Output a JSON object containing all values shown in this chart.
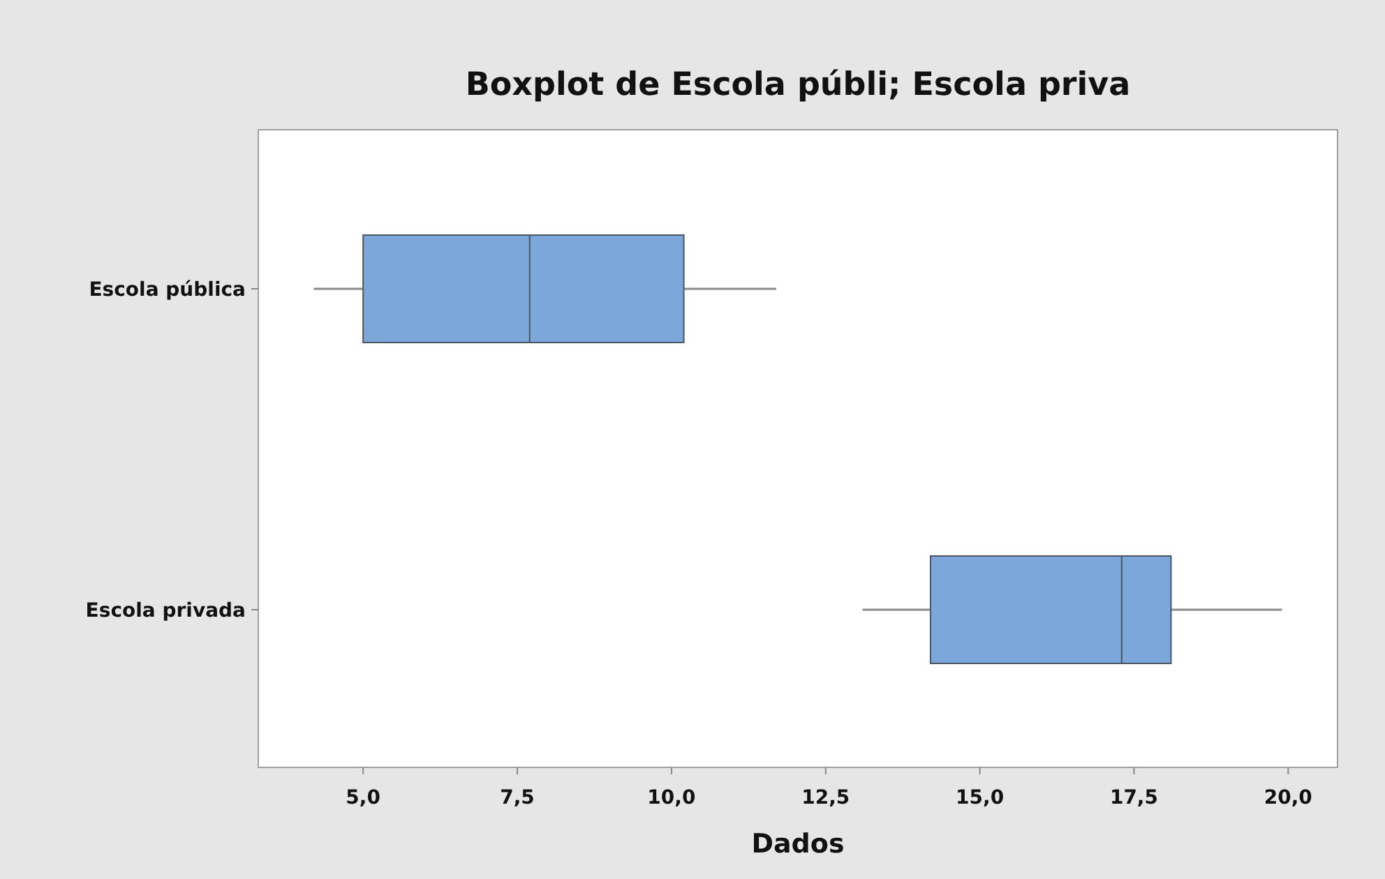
{
  "chart_data": {
    "type": "box",
    "title": "Boxplot de Escola públi; Escola priva",
    "xlabel": "Dados",
    "orientation": "horizontal",
    "categories": [
      "Escola pública",
      "Escola privada"
    ],
    "series": [
      {
        "color": "#7ba7d9",
        "boxes": [
          {
            "low": 4.2,
            "q1": 5.0,
            "median": 7.7,
            "q3": 10.2,
            "high": 11.7
          },
          {
            "low": 13.1,
            "q1": 14.2,
            "median": 17.3,
            "q3": 18.1,
            "high": 19.9
          }
        ]
      }
    ],
    "xlim": [
      3.3,
      20.8
    ],
    "xticks": [
      {
        "value": 5,
        "label": "5,0"
      },
      {
        "value": 7.5,
        "label": "7,5"
      },
      {
        "value": 10,
        "label": "10,0"
      },
      {
        "value": 12.5,
        "label": "12,5"
      },
      {
        "value": 15,
        "label": "15,0"
      },
      {
        "value": 17.5,
        "label": "17,5"
      },
      {
        "value": 20,
        "label": "20,0"
      }
    ],
    "grid": false
  }
}
